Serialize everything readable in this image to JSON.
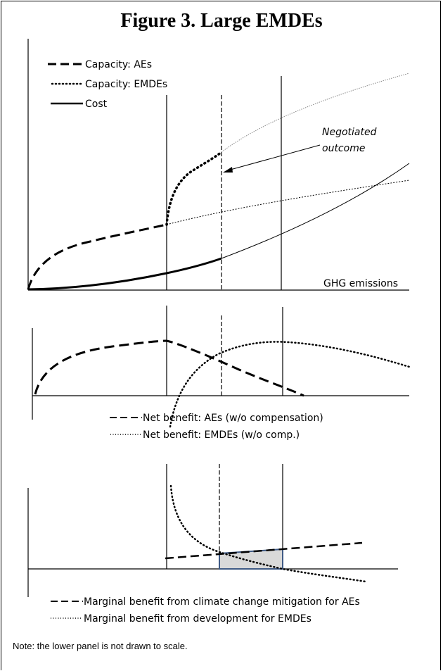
{
  "title": "Figure 3. Large EMDEs",
  "top_panel": {
    "legend": [
      {
        "label": "Capacity: AEs",
        "style": "dashed"
      },
      {
        "label": "Capacity: EMDEs",
        "style": "dotted"
      },
      {
        "label": "Cost",
        "style": "solid"
      }
    ],
    "annotation": [
      "Negotiated",
      "outcome"
    ],
    "xlabel": "GHG emissions"
  },
  "middle_panel": {
    "legend": [
      {
        "label": "Net benefit: AEs (w/o compensation)",
        "style": "dashed"
      },
      {
        "label": "Net benefit: EMDEs (w/o comp.)",
        "style": "dotted"
      }
    ]
  },
  "bottom_panel": {
    "legend": [
      {
        "label": "Marginal benefit from climate change mitigation for AEs",
        "style": "dashed"
      },
      {
        "label": "Marginal benefit from development for EMDEs",
        "style": "dotted"
      }
    ],
    "shaded_area_color": "#d9d9d9",
    "shaded_area_border": "#3f5a85"
  },
  "note": "Note: the lower panel is not drawn to scale."
}
